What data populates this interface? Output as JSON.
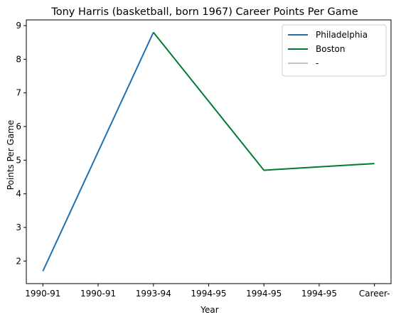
{
  "chart_data": {
    "type": "line",
    "title": "Tony Harris (basketball, born 1967) Career Points Per Game",
    "xlabel": "Year",
    "ylabel": "Points Per Game",
    "categories": [
      "1990-91",
      "1990-91",
      "1993-94",
      "1994-95",
      "1994-95",
      "1994-95",
      "Career-"
    ],
    "ylim": [
      1.33,
      9.17
    ],
    "yticks": [
      2,
      3,
      4,
      5,
      6,
      7,
      8,
      9
    ],
    "grid": false,
    "legend_position": "top-right",
    "series": [
      {
        "name": "Philadelphia",
        "color": "#1f6fae",
        "points": [
          [
            0,
            1.7
          ],
          [
            2,
            8.8
          ]
        ]
      },
      {
        "name": "Boston",
        "color": "#007a33",
        "points": [
          [
            2,
            8.8
          ],
          [
            4,
            4.7
          ],
          [
            6,
            4.9
          ]
        ]
      },
      {
        "name": "-",
        "color": "#c0c0c0",
        "points": []
      }
    ]
  }
}
